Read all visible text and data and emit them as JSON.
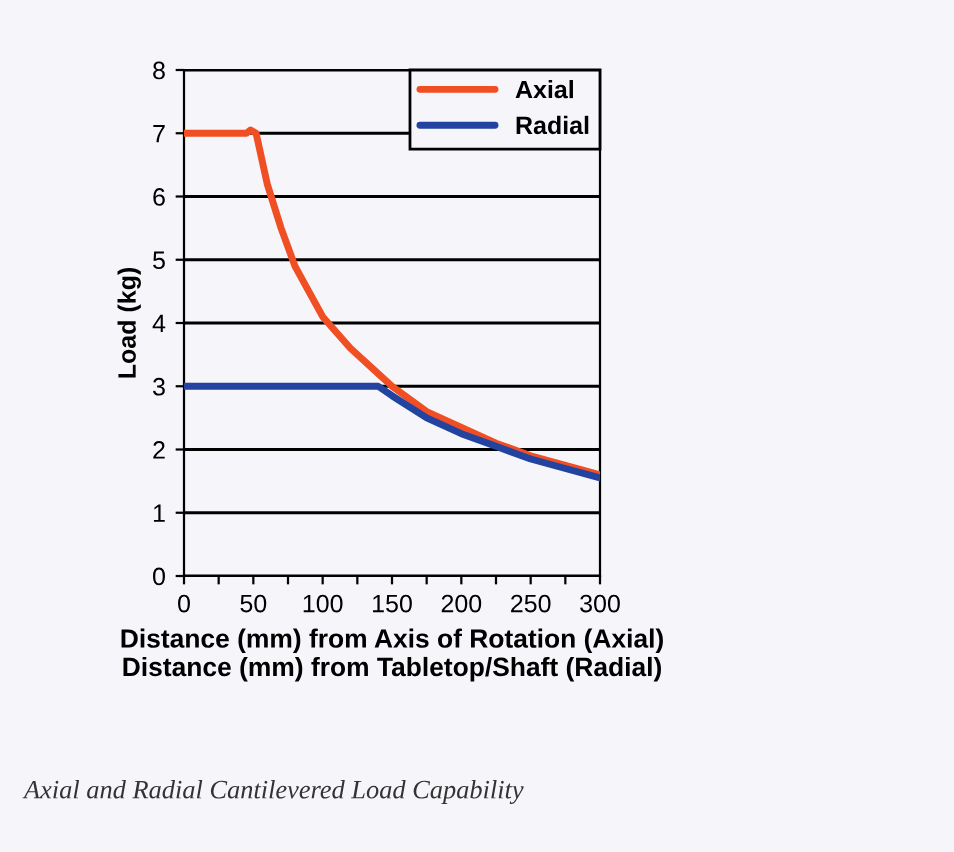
{
  "chart_data": {
    "type": "line",
    "xlabel": "Distance (mm) from Axis of Rotation (Axial)\nDistance (mm) from Tabletop/Shaft (Radial)",
    "ylabel": "Load (kg)",
    "annotations": [
      "Axial and Radial Cantilevered Load Capability"
    ],
    "xlim": [
      0,
      300
    ],
    "ylim": [
      0,
      8
    ],
    "xticks": [
      0,
      {
        "value": 25,
        "label": null
      },
      50,
      {
        "value": 75,
        "label": null
      },
      100,
      {
        "value": 125,
        "label": null
      },
      150,
      {
        "value": 175,
        "label": null
      },
      200,
      {
        "value": 225,
        "label": null
      },
      250,
      {
        "value": 275,
        "label": null
      },
      300
    ],
    "yticks": [
      0,
      1,
      2,
      3,
      4,
      5,
      6,
      7,
      8
    ],
    "grid": "y",
    "legend": "top right",
    "marker": "none",
    "line_style": "solid",
    "series": [
      {
        "name": "Axial",
        "color": "#f04e23",
        "x": [
          0,
          45,
          48,
          52,
          55,
          60,
          70,
          80,
          100,
          120,
          140,
          150,
          175,
          200,
          225,
          250,
          275,
          300
        ],
        "values": [
          7,
          7,
          7.05,
          7,
          6.7,
          6.2,
          5.5,
          4.9,
          4.1,
          3.6,
          3.2,
          3.0,
          2.6,
          2.35,
          2.1,
          1.9,
          1.75,
          1.6
        ]
      },
      {
        "name": "Radial",
        "color": "#2244a0",
        "x": [
          0,
          140,
          150,
          175,
          200,
          225,
          250,
          275,
          300
        ],
        "values": [
          3,
          3,
          2.85,
          2.5,
          2.25,
          2.05,
          1.85,
          1.7,
          1.55
        ]
      }
    ]
  }
}
